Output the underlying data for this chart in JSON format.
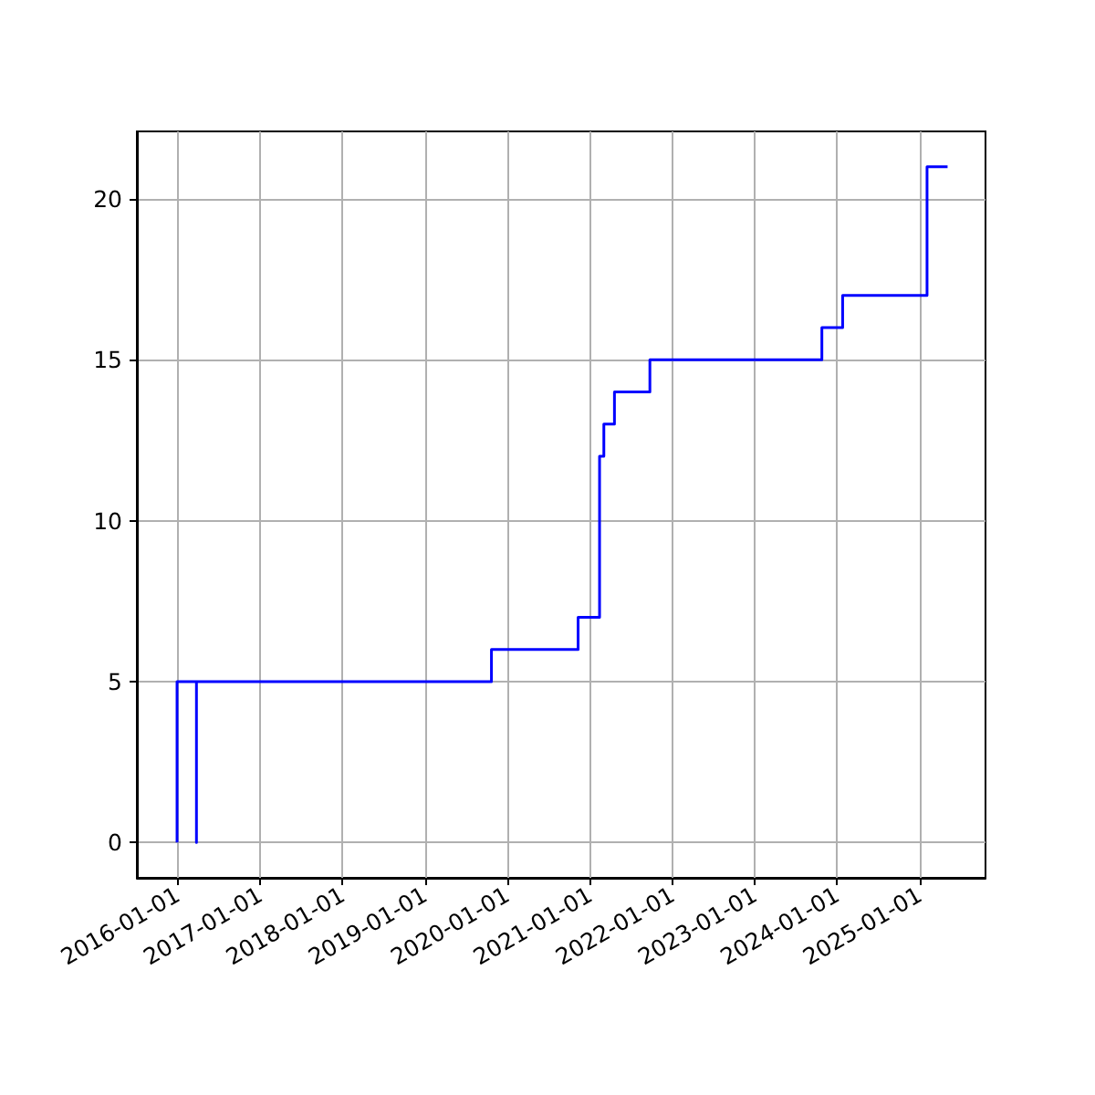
{
  "chart_data": {
    "type": "step",
    "x": [
      "2015-12-30",
      "2015-12-30",
      "2016-03-25",
      "2016-03-25",
      "2019-10-23",
      "2020-11-10",
      "2021-02-13",
      "2021-03-04",
      "2021-04-20",
      "2021-09-24",
      "2023-10-26",
      "2024-01-26",
      "2025-02-03",
      "2025-05-05"
    ],
    "series": [
      {
        "color": "#0000ff",
        "values": [
          0,
          5,
          0,
          5,
          6,
          7,
          12,
          13,
          14,
          15,
          16,
          17,
          21,
          21
        ]
      }
    ],
    "xlim": [
      "2015-07-05",
      "2025-10-20"
    ],
    "xticks": [
      "2016-01-01",
      "2017-01-01",
      "2018-01-01",
      "2019-01-01",
      "2020-01-01",
      "2021-01-01",
      "2022-01-01",
      "2023-01-01",
      "2024-01-01",
      "2025-01-01"
    ],
    "ylim": [
      -1.1,
      22.1
    ],
    "yticks": [
      0,
      5,
      10,
      15,
      20
    ],
    "grid": true,
    "marker": "none",
    "line_style": "solid"
  }
}
